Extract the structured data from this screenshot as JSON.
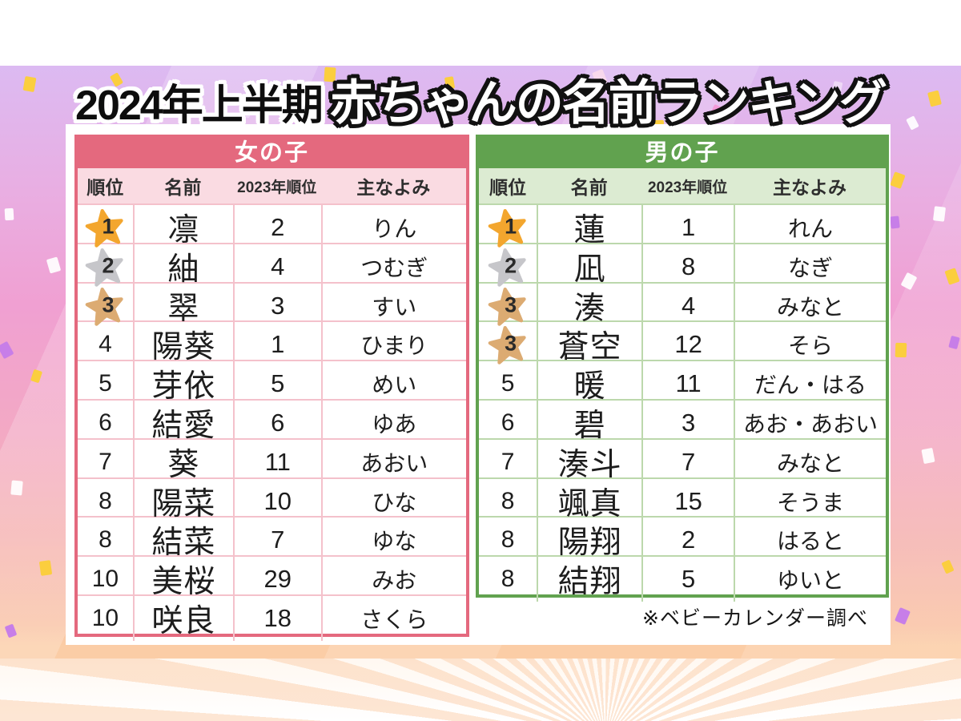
{
  "title": {
    "prefix": "2024年上半期",
    "main": "赤ちゃんの名前ランキング"
  },
  "footnote": "※ベビーカレンダー調べ",
  "columns": [
    "順位",
    "名前",
    "2023年順位",
    "主なよみ"
  ],
  "medal_colors": {
    "gold": "#f3a62e",
    "silver": "#c6c6ca",
    "bronze": "#dcab72"
  },
  "tables": [
    {
      "id": "girls",
      "header": "女の子",
      "accent": "#e4697e",
      "subheader_bg": "#fadbe2",
      "grid": "#f4c1cb",
      "rows": [
        {
          "rank": "1",
          "medal": "gold",
          "name": "凛",
          "prev": "2",
          "yomi": "りん"
        },
        {
          "rank": "2",
          "medal": "silver",
          "name": "紬",
          "prev": "4",
          "yomi": "つむぎ"
        },
        {
          "rank": "3",
          "medal": "bronze",
          "name": "翠",
          "prev": "3",
          "yomi": "すい"
        },
        {
          "rank": "4",
          "medal": null,
          "name": "陽葵",
          "prev": "1",
          "yomi": "ひまり"
        },
        {
          "rank": "5",
          "medal": null,
          "name": "芽依",
          "prev": "5",
          "yomi": "めい"
        },
        {
          "rank": "6",
          "medal": null,
          "name": "結愛",
          "prev": "6",
          "yomi": "ゆあ"
        },
        {
          "rank": "7",
          "medal": null,
          "name": "葵",
          "prev": "11",
          "yomi": "あおい"
        },
        {
          "rank": "8",
          "medal": null,
          "name": "陽菜",
          "prev": "10",
          "yomi": "ひな"
        },
        {
          "rank": "8",
          "medal": null,
          "name": "結菜",
          "prev": "7",
          "yomi": "ゆな"
        },
        {
          "rank": "10",
          "medal": null,
          "name": "美桜",
          "prev": "29",
          "yomi": "みお"
        },
        {
          "rank": "10",
          "medal": null,
          "name": "咲良",
          "prev": "18",
          "yomi": "さくら"
        }
      ]
    },
    {
      "id": "boys",
      "header": "男の子",
      "accent": "#61a24f",
      "subheader_bg": "#dcebd2",
      "grid": "#bcd8ac",
      "rows": [
        {
          "rank": "1",
          "medal": "gold",
          "name": "蓮",
          "prev": "1",
          "yomi": "れん"
        },
        {
          "rank": "2",
          "medal": "silver",
          "name": "凪",
          "prev": "8",
          "yomi": "なぎ"
        },
        {
          "rank": "3",
          "medal": "bronze",
          "name": "湊",
          "prev": "4",
          "yomi": "みなと"
        },
        {
          "rank": "3",
          "medal": "bronze",
          "name": "蒼空",
          "prev": "12",
          "yomi": "そら"
        },
        {
          "rank": "5",
          "medal": null,
          "name": "暖",
          "prev": "11",
          "yomi": "だん・はる"
        },
        {
          "rank": "6",
          "medal": null,
          "name": "碧",
          "prev": "3",
          "yomi": "あお・あおい"
        },
        {
          "rank": "7",
          "medal": null,
          "name": "湊斗",
          "prev": "7",
          "yomi": "みなと"
        },
        {
          "rank": "8",
          "medal": null,
          "name": "颯真",
          "prev": "15",
          "yomi": "そうま"
        },
        {
          "rank": "8",
          "medal": null,
          "name": "陽翔",
          "prev": "2",
          "yomi": "はると"
        },
        {
          "rank": "8",
          "medal": null,
          "name": "結翔",
          "prev": "5",
          "yomi": "ゆいと"
        }
      ]
    }
  ],
  "chart_data": [
    {
      "type": "table",
      "title": "女の子",
      "columns": [
        "順位",
        "名前",
        "2023年順位",
        "主なよみ"
      ],
      "rows": [
        [
          "1",
          "凛",
          "2",
          "りん"
        ],
        [
          "2",
          "紬",
          "4",
          "つむぎ"
        ],
        [
          "3",
          "翠",
          "3",
          "すい"
        ],
        [
          "4",
          "陽葵",
          "1",
          "ひまり"
        ],
        [
          "5",
          "芽依",
          "5",
          "めい"
        ],
        [
          "6",
          "結愛",
          "6",
          "ゆあ"
        ],
        [
          "7",
          "葵",
          "11",
          "あおい"
        ],
        [
          "8",
          "陽菜",
          "10",
          "ひな"
        ],
        [
          "8",
          "結菜",
          "7",
          "ゆな"
        ],
        [
          "10",
          "美桜",
          "29",
          "みお"
        ],
        [
          "10",
          "咲良",
          "18",
          "さくら"
        ]
      ]
    },
    {
      "type": "table",
      "title": "男の子",
      "columns": [
        "順位",
        "名前",
        "2023年順位",
        "主なよみ"
      ],
      "rows": [
        [
          "1",
          "蓮",
          "1",
          "れん"
        ],
        [
          "2",
          "凪",
          "8",
          "なぎ"
        ],
        [
          "3",
          "湊",
          "4",
          "みなと"
        ],
        [
          "3",
          "蒼空",
          "12",
          "そら"
        ],
        [
          "5",
          "暖",
          "11",
          "だん・はる"
        ],
        [
          "6",
          "碧",
          "3",
          "あお・あおい"
        ],
        [
          "7",
          "湊斗",
          "7",
          "みなと"
        ],
        [
          "8",
          "颯真",
          "15",
          "そうま"
        ],
        [
          "8",
          "陽翔",
          "2",
          "はると"
        ],
        [
          "8",
          "結翔",
          "5",
          "ゆいと"
        ]
      ]
    }
  ]
}
